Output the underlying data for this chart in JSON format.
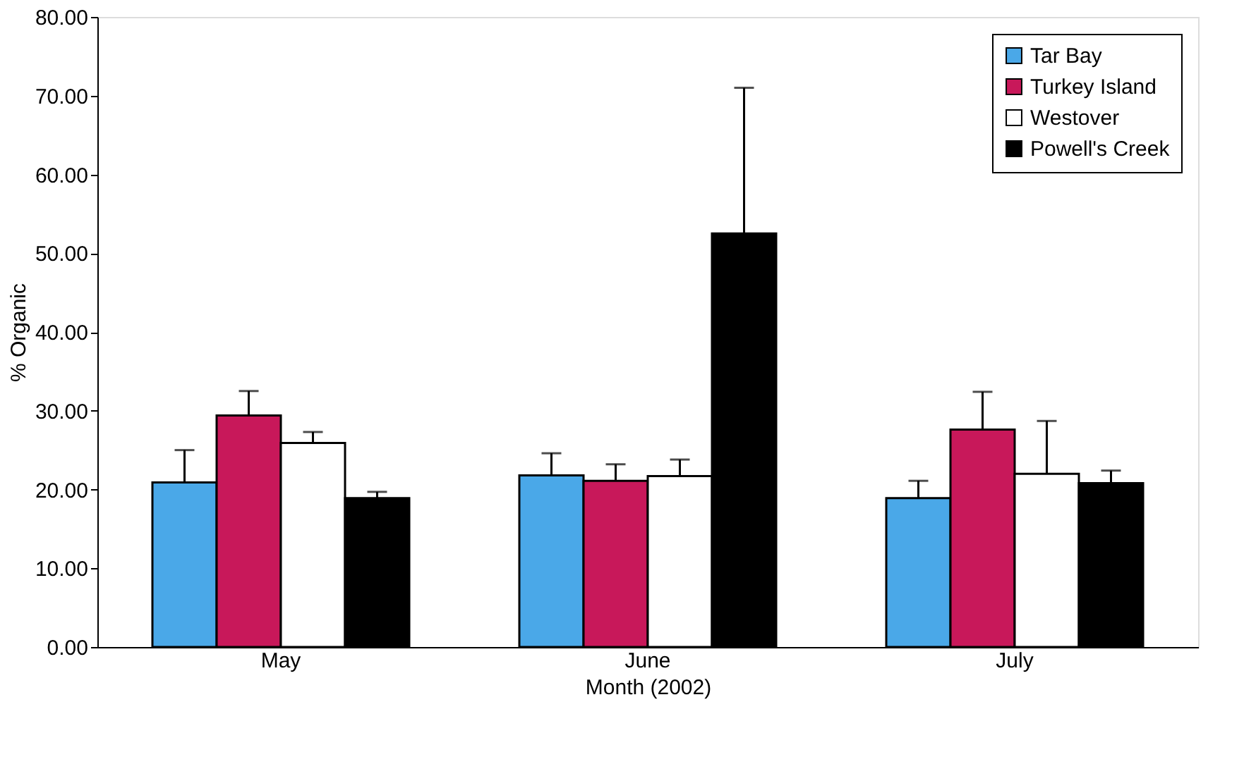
{
  "chart_data": {
    "type": "bar",
    "xlabel": "Month (2002)",
    "ylabel": "% Organic",
    "categories": [
      "May",
      "June",
      "July"
    ],
    "series": [
      {
        "name": "Tar Bay",
        "color": "#4aa8e8",
        "values": [
          20.9,
          21.8,
          18.9
        ],
        "errors": [
          [
            20.9,
            25.0
          ],
          [
            21.8,
            24.6
          ],
          [
            18.9,
            21.1
          ]
        ]
      },
      {
        "name": "Turkey Island",
        "color": "#c8185a",
        "values": [
          29.4,
          21.1,
          27.6
        ],
        "errors": [
          [
            29.4,
            32.5
          ],
          [
            21.1,
            23.2
          ],
          [
            27.6,
            32.4
          ]
        ]
      },
      {
        "name": "Westover",
        "color": "#ffffff",
        "values": [
          25.9,
          21.7,
          22.0
        ],
        "errors": [
          [
            25.9,
            27.3
          ],
          [
            21.7,
            23.8
          ],
          [
            22.0,
            28.7
          ]
        ]
      },
      {
        "name": "Powell's Creek",
        "color": "#000000",
        "values": [
          18.9,
          52.5,
          20.8
        ],
        "errors": [
          [
            18.9,
            19.7
          ],
          [
            52.5,
            71.0
          ],
          [
            20.8,
            22.4
          ]
        ]
      }
    ],
    "ylim": [
      0,
      80
    ],
    "yticks": [
      {
        "value": 0,
        "label": "0.00"
      },
      {
        "value": 10,
        "label": "10.00"
      },
      {
        "value": 20,
        "label": "20.00"
      },
      {
        "value": 30,
        "label": "30.00"
      },
      {
        "value": 40,
        "label": "40.00"
      },
      {
        "value": 50,
        "label": "50.00"
      },
      {
        "value": 60,
        "label": "60.00"
      },
      {
        "value": 70,
        "label": "70.00"
      },
      {
        "value": 80,
        "label": "80.00"
      }
    ],
    "grid": false,
    "legend": "top right"
  }
}
